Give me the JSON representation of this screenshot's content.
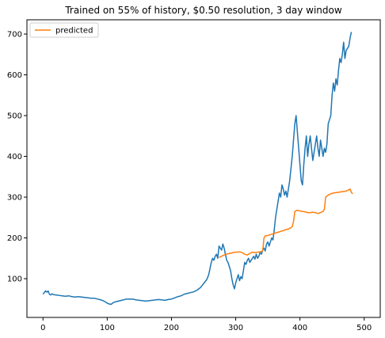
{
  "chart_data": {
    "type": "line",
    "title": "Trained on 55% of history, $0.50 resolution, 3 day window",
    "xlabel": "",
    "ylabel": "",
    "xlim": [
      -25,
      525
    ],
    "ylim": [
      5,
      735
    ],
    "x_ticks": [
      0,
      100,
      200,
      300,
      400,
      500
    ],
    "y_ticks": [
      100,
      200,
      300,
      400,
      500,
      600,
      700
    ],
    "grid": false,
    "legend_position": "top-left",
    "legend": [
      {
        "label": "predicted",
        "color": "#ff7f0e"
      }
    ],
    "series": [
      {
        "name": "",
        "color": "#1f77b4",
        "points": [
          [
            0,
            62
          ],
          [
            2,
            66
          ],
          [
            4,
            70
          ],
          [
            6,
            67
          ],
          [
            8,
            70
          ],
          [
            10,
            62
          ],
          [
            12,
            60
          ],
          [
            14,
            63
          ],
          [
            16,
            61
          ],
          [
            20,
            60
          ],
          [
            25,
            59
          ],
          [
            30,
            58
          ],
          [
            35,
            57
          ],
          [
            40,
            58
          ],
          [
            45,
            56
          ],
          [
            50,
            55
          ],
          [
            55,
            56
          ],
          [
            60,
            55
          ],
          [
            65,
            54
          ],
          [
            70,
            53
          ],
          [
            75,
            52
          ],
          [
            80,
            52
          ],
          [
            85,
            50
          ],
          [
            90,
            48
          ],
          [
            95,
            45
          ],
          [
            100,
            40
          ],
          [
            103,
            38
          ],
          [
            106,
            37
          ],
          [
            110,
            42
          ],
          [
            115,
            44
          ],
          [
            120,
            46
          ],
          [
            125,
            48
          ],
          [
            130,
            50
          ],
          [
            135,
            50
          ],
          [
            140,
            50
          ],
          [
            145,
            48
          ],
          [
            150,
            47
          ],
          [
            155,
            46
          ],
          [
            160,
            45
          ],
          [
            165,
            46
          ],
          [
            170,
            47
          ],
          [
            175,
            48
          ],
          [
            180,
            49
          ],
          [
            185,
            48
          ],
          [
            190,
            47
          ],
          [
            195,
            49
          ],
          [
            200,
            50
          ],
          [
            205,
            53
          ],
          [
            210,
            56
          ],
          [
            215,
            58
          ],
          [
            220,
            62
          ],
          [
            225,
            64
          ],
          [
            230,
            66
          ],
          [
            235,
            68
          ],
          [
            240,
            72
          ],
          [
            245,
            78
          ],
          [
            250,
            88
          ],
          [
            255,
            98
          ],
          [
            258,
            110
          ],
          [
            260,
            125
          ],
          [
            262,
            140
          ],
          [
            264,
            150
          ],
          [
            266,
            145
          ],
          [
            268,
            155
          ],
          [
            270,
            160
          ],
          [
            272,
            150
          ],
          [
            274,
            180
          ],
          [
            276,
            175
          ],
          [
            278,
            170
          ],
          [
            280,
            185
          ],
          [
            282,
            175
          ],
          [
            284,
            160
          ],
          [
            286,
            145
          ],
          [
            288,
            140
          ],
          [
            290,
            130
          ],
          [
            292,
            120
          ],
          [
            294,
            100
          ],
          [
            296,
            85
          ],
          [
            298,
            75
          ],
          [
            300,
            90
          ],
          [
            302,
            100
          ],
          [
            304,
            110
          ],
          [
            306,
            95
          ],
          [
            308,
            105
          ],
          [
            310,
            100
          ],
          [
            312,
            120
          ],
          [
            314,
            140
          ],
          [
            316,
            135
          ],
          [
            318,
            145
          ],
          [
            320,
            150
          ],
          [
            322,
            140
          ],
          [
            324,
            145
          ],
          [
            326,
            150
          ],
          [
            328,
            155
          ],
          [
            330,
            148
          ],
          [
            332,
            160
          ],
          [
            334,
            150
          ],
          [
            336,
            155
          ],
          [
            338,
            165
          ],
          [
            340,
            160
          ],
          [
            342,
            170
          ],
          [
            344,
            175
          ],
          [
            346,
            168
          ],
          [
            348,
            185
          ],
          [
            350,
            190
          ],
          [
            352,
            180
          ],
          [
            354,
            190
          ],
          [
            356,
            200
          ],
          [
            358,
            195
          ],
          [
            360,
            220
          ],
          [
            362,
            250
          ],
          [
            364,
            270
          ],
          [
            366,
            290
          ],
          [
            368,
            310
          ],
          [
            370,
            300
          ],
          [
            372,
            330
          ],
          [
            374,
            320
          ],
          [
            376,
            305
          ],
          [
            378,
            315
          ],
          [
            380,
            300
          ],
          [
            382,
            320
          ],
          [
            384,
            340
          ],
          [
            386,
            370
          ],
          [
            388,
            400
          ],
          [
            390,
            440
          ],
          [
            392,
            480
          ],
          [
            394,
            500
          ],
          [
            396,
            460
          ],
          [
            398,
            420
          ],
          [
            400,
            380
          ],
          [
            402,
            340
          ],
          [
            404,
            330
          ],
          [
            406,
            380
          ],
          [
            408,
            420
          ],
          [
            410,
            450
          ],
          [
            412,
            400
          ],
          [
            414,
            430
          ],
          [
            416,
            450
          ],
          [
            418,
            420
          ],
          [
            420,
            390
          ],
          [
            422,
            410
          ],
          [
            424,
            430
          ],
          [
            426,
            450
          ],
          [
            428,
            420
          ],
          [
            430,
            400
          ],
          [
            432,
            440
          ],
          [
            434,
            420
          ],
          [
            436,
            400
          ],
          [
            438,
            420
          ],
          [
            440,
            410
          ],
          [
            442,
            430
          ],
          [
            444,
            480
          ],
          [
            446,
            490
          ],
          [
            448,
            500
          ],
          [
            450,
            550
          ],
          [
            452,
            580
          ],
          [
            454,
            560
          ],
          [
            456,
            590
          ],
          [
            458,
            575
          ],
          [
            460,
            610
          ],
          [
            462,
            640
          ],
          [
            464,
            630
          ],
          [
            466,
            650
          ],
          [
            468,
            680
          ],
          [
            470,
            640
          ],
          [
            472,
            660
          ],
          [
            474,
            665
          ],
          [
            476,
            670
          ],
          [
            478,
            690
          ],
          [
            480,
            705
          ]
        ]
      },
      {
        "name": "predicted",
        "color": "#ff7f0e",
        "points": [
          [
            274,
            152
          ],
          [
            278,
            155
          ],
          [
            282,
            158
          ],
          [
            286,
            160
          ],
          [
            290,
            162
          ],
          [
            294,
            163
          ],
          [
            298,
            165
          ],
          [
            302,
            165
          ],
          [
            306,
            166
          ],
          [
            310,
            164
          ],
          [
            314,
            160
          ],
          [
            318,
            158
          ],
          [
            322,
            162
          ],
          [
            326,
            165
          ],
          [
            330,
            164
          ],
          [
            334,
            165
          ],
          [
            338,
            166
          ],
          [
            342,
            168
          ],
          [
            344,
            200
          ],
          [
            346,
            205
          ],
          [
            350,
            206
          ],
          [
            354,
            208
          ],
          [
            358,
            210
          ],
          [
            362,
            212
          ],
          [
            366,
            214
          ],
          [
            370,
            216
          ],
          [
            374,
            218
          ],
          [
            378,
            220
          ],
          [
            382,
            222
          ],
          [
            386,
            225
          ],
          [
            388,
            228
          ],
          [
            390,
            240
          ],
          [
            392,
            265
          ],
          [
            396,
            268
          ],
          [
            400,
            266
          ],
          [
            404,
            265
          ],
          [
            408,
            264
          ],
          [
            412,
            262
          ],
          [
            416,
            262
          ],
          [
            420,
            263
          ],
          [
            424,
            262
          ],
          [
            428,
            260
          ],
          [
            432,
            262
          ],
          [
            436,
            265
          ],
          [
            438,
            270
          ],
          [
            440,
            300
          ],
          [
            444,
            305
          ],
          [
            448,
            308
          ],
          [
            452,
            310
          ],
          [
            456,
            311
          ],
          [
            460,
            312
          ],
          [
            464,
            313
          ],
          [
            468,
            314
          ],
          [
            472,
            315
          ],
          [
            476,
            318
          ],
          [
            478,
            320
          ],
          [
            480,
            312
          ],
          [
            482,
            308
          ]
        ]
      }
    ]
  }
}
